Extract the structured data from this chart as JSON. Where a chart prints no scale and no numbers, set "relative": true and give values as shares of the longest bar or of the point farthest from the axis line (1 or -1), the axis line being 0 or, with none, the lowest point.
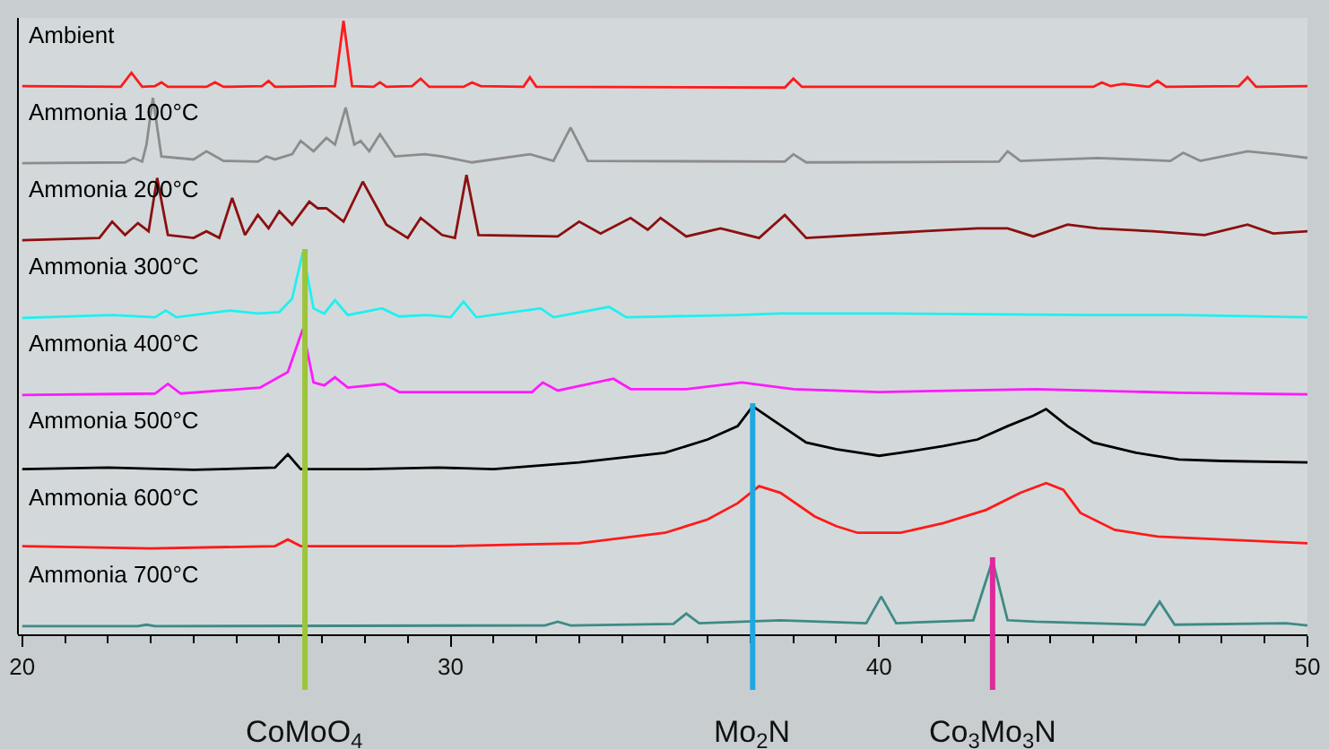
{
  "chart_data": [
    {
      "type": "line",
      "title": "Ambient",
      "relative": true,
      "xlim": [
        19.9,
        50
      ],
      "xticks": [
        20,
        30,
        40,
        50
      ],
      "tick_labels": false,
      "grid": false,
      "x": [
        20,
        22.3,
        22.55,
        22.8,
        23.1,
        23.25,
        23.4,
        24.3,
        24.5,
        24.7,
        25.6,
        25.75,
        25.9,
        27.3,
        27.5,
        27.7,
        28.2,
        28.35,
        28.5,
        29.1,
        29.3,
        29.5,
        30.3,
        30.5,
        30.7,
        31.7,
        31.85,
        32.0,
        37.8,
        38.0,
        38.2,
        45.0,
        45.2,
        45.4,
        45.7,
        46.3,
        46.5,
        46.7,
        48.4,
        48.6,
        48.8,
        50
      ],
      "series": [
        {
          "color": "#ff1a1a",
          "values": [
            0.12,
            0.11,
            0.3,
            0.11,
            0.12,
            0.17,
            0.11,
            0.11,
            0.17,
            0.11,
            0.12,
            0.19,
            0.11,
            0.12,
            1,
            0.12,
            0.11,
            0.17,
            0.11,
            0.12,
            0.22,
            0.11,
            0.11,
            0.17,
            0.12,
            0.11,
            0.24,
            0.11,
            0.1,
            0.22,
            0.11,
            0.11,
            0.17,
            0.12,
            0.15,
            0.11,
            0.19,
            0.11,
            0.12,
            0.24,
            0.11,
            0.12
          ]
        }
      ]
    },
    {
      "type": "line",
      "title": "Ammonia 100°C",
      "relative": true,
      "xlim": [
        19.9,
        50
      ],
      "xticks": [
        20,
        30,
        40,
        50
      ],
      "tick_labels": false,
      "grid": false,
      "x": [
        20,
        22.4,
        22.6,
        22.8,
        22.9,
        23.05,
        23.25,
        24.0,
        24.3,
        24.7,
        25.5,
        25.7,
        25.9,
        26.3,
        26.5,
        26.8,
        27.1,
        27.3,
        27.55,
        27.75,
        27.9,
        28.1,
        28.35,
        28.7,
        29.4,
        29.8,
        30.5,
        31.85,
        32.4,
        32.8,
        33.2,
        37.8,
        38.0,
        38.3,
        42.8,
        43.0,
        43.3,
        45.1,
        46.8,
        47.1,
        47.5,
        48.6,
        49.3,
        50
      ],
      "series": [
        {
          "color": "#8c8c8c",
          "values": [
            0.12,
            0.13,
            0.19,
            0.14,
            0.37,
            1,
            0.21,
            0.17,
            0.28,
            0.15,
            0.14,
            0.21,
            0.17,
            0.24,
            0.42,
            0.28,
            0.46,
            0.37,
            0.87,
            0.37,
            0.42,
            0.28,
            0.51,
            0.21,
            0.24,
            0.21,
            0.13,
            0.24,
            0.15,
            0.6,
            0.15,
            0.14,
            0.24,
            0.13,
            0.14,
            0.28,
            0.15,
            0.19,
            0.15,
            0.26,
            0.15,
            0.28,
            0.24,
            0.19
          ]
        }
      ]
    },
    {
      "type": "line",
      "title": "Ammonia 200°C",
      "relative": true,
      "xlim": [
        19.9,
        50
      ],
      "xticks": [
        20,
        30,
        40,
        50
      ],
      "tick_labels": false,
      "grid": false,
      "x": [
        20,
        21.8,
        22.1,
        22.4,
        22.7,
        22.95,
        23.15,
        23.4,
        24.0,
        24.3,
        24.6,
        24.9,
        25.2,
        25.5,
        25.75,
        26.0,
        26.3,
        26.7,
        26.9,
        27.1,
        27.5,
        27.95,
        28.5,
        29.0,
        29.3,
        29.8,
        30.1,
        30.37,
        30.65,
        32.5,
        33.0,
        33.5,
        34.2,
        34.6,
        34.9,
        35.5,
        36.3,
        37.2,
        37.8,
        38.3,
        41.0,
        42.3,
        43.0,
        43.6,
        44.4,
        45.1,
        46.4,
        47.6,
        48.6,
        49.2,
        50
      ],
      "series": [
        {
          "color": "#8b1010",
          "values": [
            0.12,
            0.15,
            0.37,
            0.19,
            0.35,
            0.24,
            0.96,
            0.19,
            0.15,
            0.24,
            0.15,
            0.69,
            0.19,
            0.46,
            0.28,
            0.51,
            0.33,
            0.64,
            0.55,
            0.55,
            0.37,
            0.91,
            0.33,
            0.15,
            0.42,
            0.19,
            0.15,
            1,
            0.19,
            0.17,
            0.37,
            0.21,
            0.42,
            0.26,
            0.42,
            0.17,
            0.28,
            0.15,
            0.46,
            0.15,
            0.24,
            0.28,
            0.28,
            0.17,
            0.33,
            0.28,
            0.24,
            0.19,
            0.33,
            0.21,
            0.24
          ]
        }
      ]
    },
    {
      "type": "line",
      "title": "Ammonia 300°C",
      "relative": true,
      "xlim": [
        19.9,
        50
      ],
      "xticks": [
        20,
        30,
        40,
        50
      ],
      "tick_labels": false,
      "grid": false,
      "ref_lines": [
        {
          "axis": "x",
          "value": 26.6,
          "color": "#9cc53a"
        }
      ],
      "x": [
        20,
        22.1,
        23.1,
        23.35,
        23.6,
        24.85,
        25.5,
        26.0,
        26.3,
        26.55,
        26.8,
        27.05,
        27.3,
        27.6,
        28.4,
        28.8,
        29.45,
        30.0,
        30.3,
        30.6,
        32.1,
        32.4,
        33.7,
        34.1,
        36.7,
        37.7,
        38.9,
        40.2,
        45.0,
        47.1,
        50
      ],
      "series": [
        {
          "color": "#1ff0f0",
          "values": [
            0.11,
            0.15,
            0.12,
            0.21,
            0.12,
            0.21,
            0.17,
            0.19,
            0.37,
            1,
            0.24,
            0.17,
            0.35,
            0.15,
            0.24,
            0.13,
            0.15,
            0.12,
            0.33,
            0.12,
            0.24,
            0.12,
            0.26,
            0.12,
            0.15,
            0.17,
            0.17,
            0.17,
            0.15,
            0.15,
            0.12
          ]
        }
      ]
    },
    {
      "type": "line",
      "title": "Ammonia 400°C",
      "relative": true,
      "xlim": [
        19.9,
        50
      ],
      "xticks": [
        20,
        30,
        40,
        50
      ],
      "tick_labels": false,
      "grid": false,
      "ref_lines": [
        {
          "axis": "x",
          "value": 26.6,
          "color": "#9cc53a"
        }
      ],
      "x": [
        20,
        23.1,
        23.4,
        23.7,
        25.55,
        26.2,
        26.55,
        26.8,
        27.05,
        27.3,
        27.6,
        28.45,
        28.8,
        31.9,
        32.15,
        32.5,
        33.8,
        34.2,
        35.5,
        36.8,
        38.0,
        40,
        43.65,
        47,
        50
      ],
      "series": [
        {
          "color": "#ff1aff",
          "values": [
            0.11,
            0.13,
            0.26,
            0.13,
            0.21,
            0.42,
            1,
            0.28,
            0.24,
            0.35,
            0.21,
            0.26,
            0.15,
            0.15,
            0.28,
            0.17,
            0.33,
            0.19,
            0.19,
            0.28,
            0.19,
            0.15,
            0.19,
            0.14,
            0.12
          ]
        }
      ]
    },
    {
      "type": "line",
      "title": "Ammonia 500°C",
      "relative": true,
      "xlim": [
        19.9,
        50
      ],
      "xticks": [
        20,
        30,
        40,
        50
      ],
      "tick_labels": false,
      "grid": false,
      "ref_lines": [
        {
          "axis": "x",
          "value": 26.6,
          "color": "#9cc53a"
        },
        {
          "axis": "x",
          "value": 37.05,
          "color": "#1fa8e0"
        }
      ],
      "x": [
        20,
        22,
        24,
        25.9,
        26.2,
        26.5,
        28,
        29.7,
        31,
        33,
        35,
        36,
        36.7,
        37.05,
        37.5,
        38.3,
        39.0,
        40,
        40.5,
        41.5,
        42.3,
        43,
        43.6,
        43.9,
        44.4,
        45,
        46,
        47,
        48,
        50
      ],
      "series": [
        {
          "color": "#000000",
          "values": [
            0.15,
            0.17,
            0.14,
            0.17,
            0.35,
            0.15,
            0.15,
            0.17,
            0.15,
            0.24,
            0.37,
            0.55,
            0.73,
            1,
            0.82,
            0.51,
            0.42,
            0.33,
            0.37,
            0.46,
            0.55,
            0.73,
            0.87,
            0.96,
            0.73,
            0.51,
            0.37,
            0.28,
            0.26,
            0.24
          ]
        }
      ]
    },
    {
      "type": "line",
      "title": "Ammonia 600°C",
      "relative": true,
      "xlim": [
        19.9,
        50
      ],
      "xticks": [
        20,
        30,
        40,
        50
      ],
      "tick_labels": false,
      "grid": false,
      "ref_lines": [
        {
          "axis": "x",
          "value": 26.6,
          "color": "#9cc53a"
        },
        {
          "axis": "x",
          "value": 37.05,
          "color": "#1fa8e0"
        }
      ],
      "x": [
        20,
        23,
        25.9,
        26.2,
        26.5,
        28,
        30,
        33,
        35,
        36,
        36.7,
        37.2,
        37.7,
        38.5,
        39.0,
        39.5,
        40.5,
        41.5,
        42.5,
        43.3,
        43.9,
        44.3,
        44.7,
        45.5,
        46.5,
        48,
        50
      ],
      "series": [
        {
          "color": "#ff1a1a",
          "values": [
            0.15,
            0.12,
            0.15,
            0.24,
            0.15,
            0.15,
            0.15,
            0.19,
            0.33,
            0.51,
            0.73,
            0.96,
            0.87,
            0.55,
            0.42,
            0.33,
            0.33,
            0.46,
            0.64,
            0.87,
            1,
            0.91,
            0.6,
            0.37,
            0.28,
            0.24,
            0.19
          ]
        }
      ]
    },
    {
      "type": "line",
      "title": "Ammonia 700°C",
      "relative": true,
      "xlim": [
        19.9,
        50
      ],
      "xticks": [
        20,
        30,
        40,
        50
      ],
      "tick_labels": "x",
      "grid": false,
      "ref_lines": [
        {
          "axis": "x",
          "value": 26.6,
          "color": "#9cc53a",
          "label": "CoMoO$_{4}$"
        },
        {
          "axis": "x",
          "value": 37.05,
          "color": "#1fa8e0",
          "label": "Mo$_{2}$N"
        },
        {
          "axis": "x",
          "value": 42.65,
          "color": "#e0289e",
          "label": "Co$_{3}$Mo$_{3}$N"
        }
      ],
      "x": [
        20,
        22.7,
        22.9,
        23.1,
        32.2,
        32.5,
        32.8,
        35.2,
        35.5,
        35.8,
        37.7,
        39.7,
        40.05,
        40.4,
        42.2,
        42.65,
        43.0,
        43.65,
        46.2,
        46.55,
        46.9,
        49.5,
        50
      ],
      "series": [
        {
          "color": "#3f8a85",
          "values": [
            0.11,
            0.11,
            0.13,
            0.11,
            0.12,
            0.17,
            0.12,
            0.14,
            0.28,
            0.15,
            0.19,
            0.15,
            0.51,
            0.15,
            0.19,
            1,
            0.19,
            0.17,
            0.13,
            0.44,
            0.13,
            0.15,
            0.12
          ]
        }
      ]
    }
  ]
}
